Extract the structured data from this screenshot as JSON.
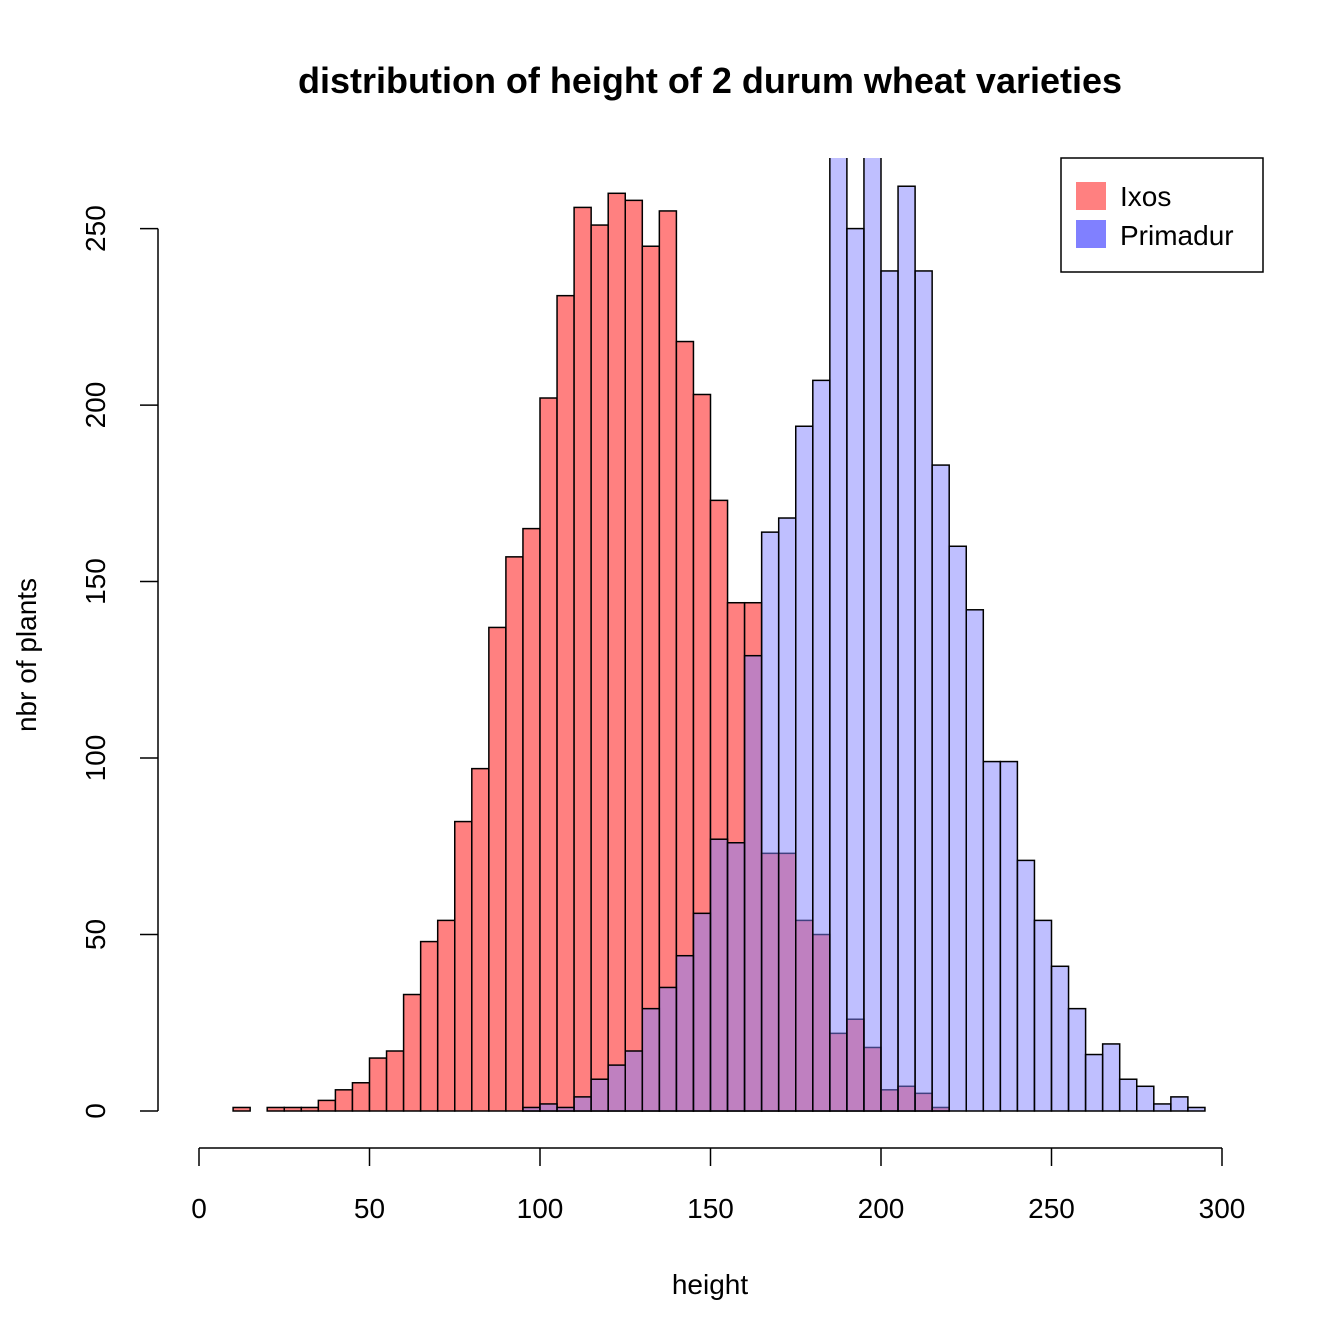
{
  "chart_data": {
    "type": "bar",
    "subtype": "overlaid-histogram",
    "title": "distribution of height of 2 durum wheat varieties",
    "xlabel": "height",
    "ylabel": "nbr of plants",
    "xlim": [
      0,
      300
    ],
    "ylim": [
      0,
      270
    ],
    "x_ticks": [
      0,
      50,
      100,
      150,
      200,
      250,
      300
    ],
    "y_ticks": [
      0,
      50,
      100,
      150,
      200,
      250
    ],
    "grid": false,
    "legend_position": "top-right",
    "bin_width": 5,
    "series": [
      {
        "name": "Ixos",
        "color": "#ff8080",
        "bin_starts": [
          10,
          15,
          20,
          25,
          30,
          35,
          40,
          45,
          50,
          55,
          60,
          65,
          70,
          75,
          80,
          85,
          90,
          95,
          100,
          105,
          110,
          115,
          120,
          125,
          130,
          135,
          140,
          145,
          150,
          155,
          160,
          165,
          170,
          175,
          180,
          185,
          190,
          195,
          200,
          205,
          210,
          215
        ],
        "values": [
          1,
          0,
          1,
          1,
          1,
          3,
          6,
          8,
          15,
          17,
          33,
          48,
          54,
          82,
          97,
          137,
          157,
          165,
          202,
          231,
          256,
          251,
          260,
          258,
          245,
          255,
          218,
          203,
          173,
          144,
          144,
          73,
          73,
          54,
          50,
          22,
          26,
          18,
          6,
          7,
          5,
          1
        ]
      },
      {
        "name": "Primadur",
        "color": "#8080ff",
        "bin_starts": [
          95,
          100,
          105,
          110,
          115,
          120,
          125,
          130,
          135,
          140,
          145,
          150,
          155,
          160,
          165,
          170,
          175,
          180,
          185,
          190,
          195,
          200,
          205,
          210,
          215,
          220,
          225,
          230,
          235,
          240,
          245,
          250,
          255,
          260,
          265,
          270,
          275,
          280,
          285,
          290,
          295
        ],
        "values": [
          1,
          2,
          1,
          4,
          9,
          13,
          17,
          29,
          35,
          44,
          56,
          77,
          76,
          129,
          164,
          168,
          194,
          207,
          279,
          250,
          285,
          238,
          262,
          238,
          183,
          160,
          142,
          99,
          99,
          71,
          54,
          41,
          29,
          16,
          19,
          9,
          7,
          2,
          4,
          1,
          0
        ]
      }
    ]
  }
}
